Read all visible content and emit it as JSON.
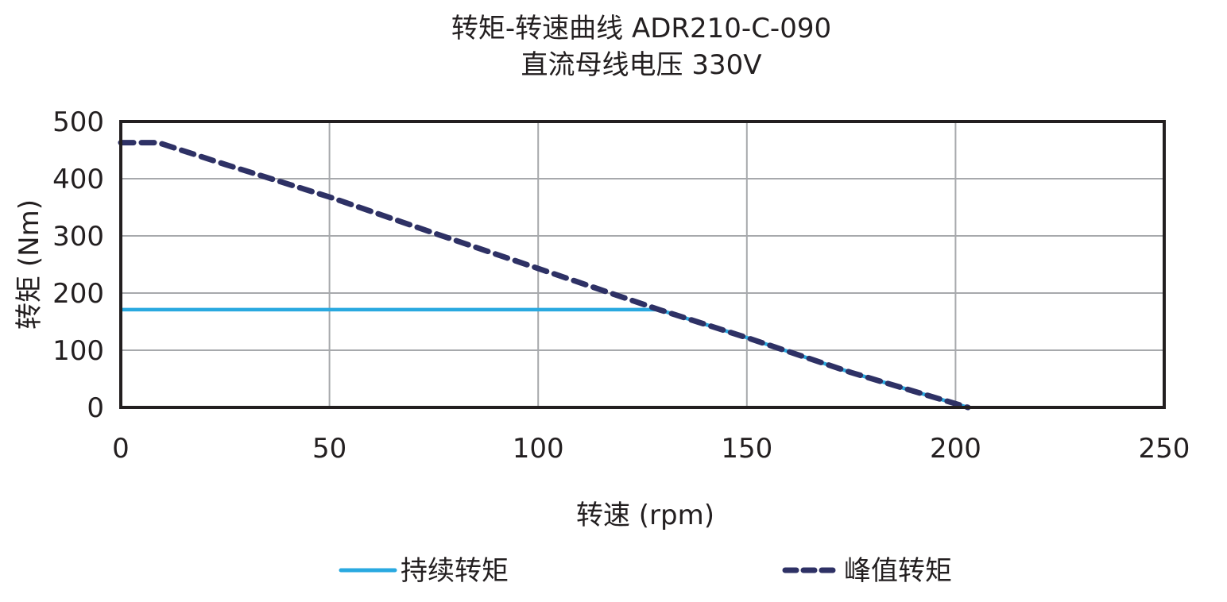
{
  "chart_data": {
    "type": "line",
    "title": "转矩-转速曲线 ADR210-C-090",
    "subtitle": "直流母线电压 330V",
    "xlabel": "转速 (rpm)",
    "ylabel": "转矩 (Nm)",
    "xlim": [
      0,
      250
    ],
    "ylim": [
      0,
      500
    ],
    "xticks": [
      0,
      50,
      100,
      150,
      200,
      250
    ],
    "yticks": [
      0,
      100,
      200,
      300,
      400,
      500
    ],
    "grid": true,
    "legend_position": "bottom",
    "series": [
      {
        "name": "持续转矩",
        "style": "solid",
        "color": "#29a9e0",
        "x": [
          0,
          129,
          150,
          175,
          203
        ],
        "y": [
          171,
          171,
          122,
          61,
          0
        ]
      },
      {
        "name": "峰值转矩",
        "style": "dashed",
        "color": "#2e3165",
        "x": [
          0,
          9,
          25,
          50,
          75,
          100,
          129,
          150,
          175,
          203
        ],
        "y": [
          463,
          463,
          425,
          368,
          305,
          243,
          171,
          122,
          61,
          0
        ]
      }
    ]
  },
  "title_line1": "转矩-转速曲线 ADR210-C-090",
  "title_line2": "直流母线电压 330V",
  "x_axis_label": "转速 (rpm)",
  "y_axis_label": "转矩 (Nm)",
  "legend": {
    "continuous": "持续转矩",
    "peak": "峰值转矩"
  }
}
